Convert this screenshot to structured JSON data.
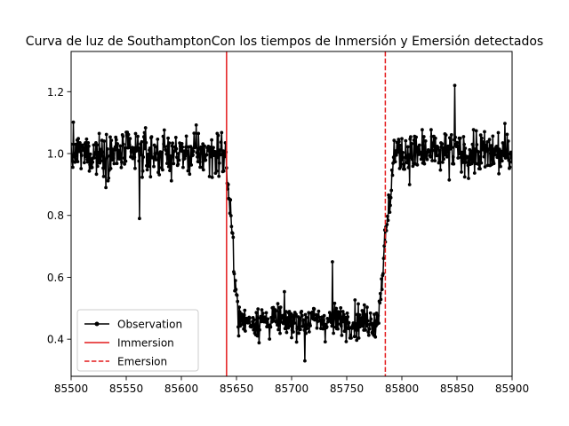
{
  "chart_data": {
    "type": "line",
    "title": "Curva de luz de SouthamptonCon los tiempos de Inmersión y Emersión detectados",
    "xlabel": "",
    "ylabel": "",
    "xlim": [
      85500,
      85900
    ],
    "ylim": [
      0.28,
      1.33
    ],
    "xticks": [
      85500,
      85550,
      85600,
      85650,
      85700,
      85750,
      85800,
      85850,
      85900
    ],
    "yticks": [
      0.4,
      0.6,
      0.8,
      1.0,
      1.2
    ],
    "ytick_labels": [
      "0.4",
      "0.6",
      "0.8",
      "1.0",
      "1.2"
    ],
    "grid": false,
    "legend_position": "lower-left",
    "series": [
      {
        "name": "Observation",
        "style": "line-with-dot-markers",
        "color": "#000000",
        "profile": {
          "baseline_level": 1.0,
          "baseline_scatter": 0.06,
          "occultation_level": 0.46,
          "occultation_scatter": 0.045,
          "ingress": [
            85640,
            85652
          ],
          "egress": [
            85778,
            85793
          ]
        },
        "points_approx": [
          [
            85500,
            0.98
          ],
          [
            85550,
            1.0
          ],
          [
            85600,
            1.02
          ],
          [
            85640,
            0.97
          ],
          [
            85648,
            0.65
          ],
          [
            85660,
            0.48
          ],
          [
            85700,
            0.45
          ],
          [
            85750,
            0.48
          ],
          [
            85778,
            0.55
          ],
          [
            85786,
            0.8
          ],
          [
            85800,
            1.0
          ],
          [
            85850,
            1.0
          ],
          [
            85900,
            0.99
          ]
        ],
        "extremes": {
          "max": [
            85848,
            1.22
          ],
          "min": [
            85562,
            0.79
          ],
          "occultation_max": [
            85737,
            0.65
          ],
          "occultation_min": [
            85712,
            0.33
          ]
        }
      }
    ],
    "vlines": [
      {
        "name": "Immersion",
        "x": 85641,
        "style": "solid",
        "color": "#e41a1c"
      },
      {
        "name": "Emersion",
        "x": 85785,
        "style": "dashed",
        "color": "#e41a1c"
      }
    ],
    "legend": [
      {
        "label": "Observation",
        "kind": "line-marker",
        "color": "#000000"
      },
      {
        "label": "Immersion",
        "kind": "solid",
        "color": "#e41a1c"
      },
      {
        "label": "Emersion",
        "kind": "dashed",
        "color": "#e41a1c"
      }
    ]
  }
}
